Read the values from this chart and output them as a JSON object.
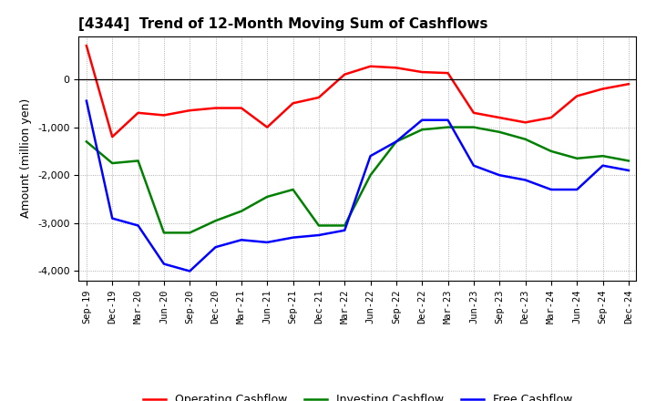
{
  "title": "[4344]  Trend of 12-Month Moving Sum of Cashflows",
  "ylabel": "Amount (million yen)",
  "x_labels": [
    "Sep-19",
    "Dec-19",
    "Mar-20",
    "Jun-20",
    "Sep-20",
    "Dec-20",
    "Mar-21",
    "Jun-21",
    "Sep-21",
    "Dec-21",
    "Mar-22",
    "Jun-22",
    "Sep-22",
    "Dec-22",
    "Mar-23",
    "Jun-23",
    "Sep-23",
    "Dec-23",
    "Mar-24",
    "Jun-24",
    "Sep-24",
    "Dec-24"
  ],
  "operating_cashflow": [
    700,
    -1200,
    -700,
    -750,
    -650,
    -600,
    -600,
    -1000,
    -500,
    -380,
    100,
    270,
    240,
    150,
    130,
    -700,
    -800,
    -900,
    -800,
    -350,
    -200,
    -100
  ],
  "investing_cashflow": [
    -1300,
    -1750,
    -1700,
    -3200,
    -3200,
    -2950,
    -2750,
    -2450,
    -2300,
    -3050,
    -3050,
    -2000,
    -1300,
    -1050,
    -1000,
    -1000,
    -1100,
    -1250,
    -1500,
    -1650,
    -1600,
    -1700
  ],
  "free_cashflow": [
    -450,
    -2900,
    -3050,
    -3850,
    -4000,
    -3500,
    -3350,
    -3400,
    -3300,
    -3250,
    -3150,
    -1600,
    -1300,
    -850,
    -850,
    -1800,
    -2000,
    -2100,
    -2300,
    -2300,
    -1800,
    -1900
  ],
  "operating_color": "#ff0000",
  "investing_color": "#008000",
  "free_color": "#0000ff",
  "ylim": [
    -4200,
    900
  ],
  "yticks": [
    -4000,
    -3000,
    -2000,
    -1000,
    0
  ],
  "bg_color": "#ffffff",
  "grid_color": "#999999",
  "line_width": 1.8
}
